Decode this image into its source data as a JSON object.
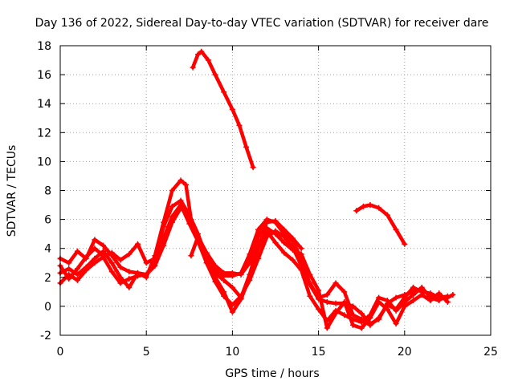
{
  "chart_data": {
    "type": "scatter",
    "title": "Day 136 of 2022, Sidereal Day-to-day VTEC variation (SDTVAR) for receiver dare",
    "xlabel": "GPS time / hours",
    "ylabel": "SDTVAR / TECUs",
    "xlim": [
      0,
      25
    ],
    "ylim": [
      -2,
      18
    ],
    "xticks": [
      0,
      5,
      10,
      15,
      20,
      25
    ],
    "yticks": [
      -2,
      0,
      2,
      4,
      6,
      8,
      10,
      12,
      14,
      16,
      18
    ],
    "grid": true,
    "marker": "+",
    "color": "#ff0000",
    "series": [
      {
        "name": "track-1",
        "points": [
          [
            0,
            3.3
          ],
          [
            0.5,
            3.0
          ],
          [
            1,
            3.8
          ],
          [
            1.5,
            3.3
          ],
          [
            2,
            4.6
          ],
          [
            2.5,
            4.2
          ],
          [
            3,
            3.5
          ],
          [
            3.5,
            2.7
          ],
          [
            4,
            2.4
          ],
          [
            4.5,
            2.3
          ],
          [
            5,
            2.0
          ],
          [
            5.5,
            3.5
          ],
          [
            6,
            5.8
          ],
          [
            6.5,
            8.0
          ],
          [
            7,
            8.7
          ],
          [
            7.3,
            8.4
          ],
          [
            7.6,
            6.0
          ],
          [
            8,
            4.7
          ],
          [
            8.5,
            3.6
          ],
          [
            9,
            2.5
          ],
          [
            9.5,
            2.1
          ],
          [
            10,
            2.1
          ],
          [
            10.5,
            2.3
          ],
          [
            11,
            3.6
          ],
          [
            11.5,
            5.3
          ],
          [
            12,
            6.0
          ],
          [
            12.5,
            5.8
          ],
          [
            13,
            5.0
          ],
          [
            13.5,
            4.5
          ],
          [
            14,
            3.3
          ],
          [
            14.5,
            1.5
          ],
          [
            15,
            0.5
          ],
          [
            15.5,
            0.3
          ],
          [
            16,
            0.2
          ],
          [
            16.5,
            0.2
          ],
          [
            17,
            0.0
          ],
          [
            17.5,
            -0.5
          ],
          [
            18,
            -1.2
          ],
          [
            18.5,
            -0.9
          ],
          [
            19,
            0.2
          ],
          [
            19.5,
            0.6
          ],
          [
            20,
            0.8
          ],
          [
            20.5,
            1.0
          ],
          [
            21,
            1.2
          ],
          [
            21.5,
            0.7
          ],
          [
            22,
            0.5
          ],
          [
            22.5,
            0.6
          ],
          [
            22.8,
            0.8
          ]
        ]
      },
      {
        "name": "track-2",
        "points": [
          [
            0,
            2.3
          ],
          [
            0.5,
            2.6
          ],
          [
            1,
            2.2
          ],
          [
            1.5,
            2.7
          ],
          [
            2,
            3.3
          ],
          [
            2.5,
            3.8
          ],
          [
            3,
            3.0
          ],
          [
            3.5,
            2.0
          ],
          [
            4,
            1.3
          ],
          [
            4.5,
            2.3
          ],
          [
            5,
            2.2
          ],
          [
            5.5,
            3.0
          ],
          [
            6,
            4.7
          ],
          [
            6.5,
            6.2
          ],
          [
            7,
            7.0
          ],
          [
            7.5,
            5.7
          ],
          [
            8,
            4.5
          ],
          [
            8.5,
            3.0
          ],
          [
            9,
            1.7
          ],
          [
            9.5,
            0.7
          ],
          [
            10,
            0.1
          ],
          [
            10.5,
            0.7
          ],
          [
            11,
            1.8
          ],
          [
            11.5,
            3.3
          ],
          [
            12,
            4.8
          ],
          [
            12.5,
            5.2
          ],
          [
            13,
            4.8
          ],
          [
            13.5,
            4.1
          ],
          [
            14,
            2.8
          ],
          [
            14.5,
            1.6
          ],
          [
            15,
            0.6
          ],
          [
            15.5,
            0.8
          ],
          [
            16,
            1.6
          ],
          [
            16.5,
            1.0
          ],
          [
            17,
            -0.6
          ],
          [
            17.5,
            -0.9
          ],
          [
            18,
            -1.3
          ],
          [
            18.5,
            -0.8
          ],
          [
            19,
            0.1
          ],
          [
            19.5,
            -0.2
          ],
          [
            20,
            0.6
          ],
          [
            20.5,
            1.3
          ],
          [
            21,
            1.0
          ],
          [
            21.5,
            0.9
          ],
          [
            22,
            0.6
          ],
          [
            22.5,
            0.7
          ]
        ]
      },
      {
        "name": "track-3",
        "points": [
          [
            0,
            1.6
          ],
          [
            0.5,
            2.2
          ],
          [
            1,
            1.8
          ],
          [
            1.5,
            2.5
          ],
          [
            2,
            3.0
          ],
          [
            2.5,
            3.4
          ],
          [
            3,
            2.4
          ],
          [
            3.5,
            1.6
          ],
          [
            4,
            1.9
          ],
          [
            4.5,
            2.1
          ],
          [
            5,
            2.2
          ],
          [
            5.5,
            2.8
          ],
          [
            6,
            4.2
          ],
          [
            6.5,
            5.8
          ],
          [
            7,
            6.8
          ],
          [
            7.5,
            6.2
          ],
          [
            8,
            4.8
          ],
          [
            8.5,
            3.0
          ],
          [
            9,
            2.0
          ],
          [
            9.5,
            1.0
          ],
          [
            10,
            -0.4
          ],
          [
            10.5,
            0.5
          ],
          [
            11,
            2.0
          ],
          [
            11.5,
            4.0
          ],
          [
            12,
            5.2
          ],
          [
            12.5,
            4.4
          ],
          [
            13,
            3.7
          ],
          [
            13.5,
            3.2
          ],
          [
            14,
            2.5
          ],
          [
            14.5,
            0.7
          ],
          [
            15,
            -0.2
          ],
          [
            15.5,
            -1.0
          ],
          [
            16,
            -0.3
          ],
          [
            16.5,
            -0.6
          ],
          [
            17,
            -0.9
          ],
          [
            17.5,
            -1.1
          ],
          [
            18,
            -0.6
          ],
          [
            18.5,
            0.6
          ],
          [
            19,
            0.4
          ],
          [
            19.5,
            -0.3
          ],
          [
            20,
            0.3
          ],
          [
            20.5,
            0.8
          ],
          [
            21,
            1.3
          ],
          [
            21.5,
            0.6
          ],
          [
            22,
            0.4
          ]
        ]
      },
      {
        "name": "track-4",
        "points": [
          [
            0,
            2.8
          ],
          [
            0.5,
            1.9
          ],
          [
            1,
            2.6
          ],
          [
            1.5,
            3.4
          ],
          [
            2,
            4.0
          ],
          [
            2.5,
            3.5
          ],
          [
            3,
            3.7
          ],
          [
            3.5,
            3.2
          ],
          [
            4,
            3.6
          ],
          [
            4.5,
            4.3
          ],
          [
            5,
            3.0
          ],
          [
            5.5,
            3.3
          ],
          [
            6,
            5.5
          ],
          [
            6.5,
            6.9
          ],
          [
            7,
            7.3
          ],
          [
            7.5,
            6.3
          ],
          [
            8,
            5.0
          ],
          [
            8.5,
            3.4
          ],
          [
            9,
            2.3
          ],
          [
            9.5,
            1.8
          ],
          [
            10,
            1.3
          ],
          [
            10.5,
            0.6
          ],
          [
            11,
            2.2
          ],
          [
            11.5,
            4.2
          ],
          [
            12,
            5.4
          ],
          [
            12.5,
            5.0
          ],
          [
            13,
            4.4
          ],
          [
            13.5,
            3.9
          ],
          [
            14,
            3.6
          ],
          [
            14.5,
            2.2
          ],
          [
            15,
            1.1
          ],
          [
            15.5,
            -1.5
          ],
          [
            16,
            -0.5
          ],
          [
            16.5,
            0.3
          ],
          [
            17,
            -1.3
          ],
          [
            17.5,
            -1.5
          ],
          [
            18,
            -0.8
          ],
          [
            18.5,
            0.3
          ],
          [
            19,
            -0.2
          ],
          [
            19.5,
            -1.2
          ],
          [
            20,
            0.0
          ],
          [
            20.5,
            0.4
          ],
          [
            21,
            0.8
          ],
          [
            21.5,
            0.4
          ],
          [
            22,
            0.9
          ],
          [
            22.5,
            0.3
          ]
        ]
      },
      {
        "name": "track-5",
        "points": [
          [
            7.6,
            3.5
          ],
          [
            8,
            4.8
          ],
          [
            8.5,
            3.7
          ],
          [
            9,
            2.8
          ],
          [
            9.5,
            2.3
          ],
          [
            10,
            2.3
          ],
          [
            10.5,
            2.2
          ],
          [
            11,
            3.0
          ],
          [
            11.5,
            4.8
          ],
          [
            12,
            5.8
          ],
          [
            12.5,
            5.9
          ],
          [
            13,
            5.3
          ],
          [
            13.5,
            4.7
          ],
          [
            14,
            4.0
          ]
        ]
      },
      {
        "name": "track-upper-1",
        "points": [
          [
            7.7,
            16.5
          ],
          [
            8.0,
            17.4
          ],
          [
            8.2,
            17.6
          ],
          [
            8.6,
            17.0
          ],
          [
            9.0,
            16.0
          ],
          [
            9.5,
            14.8
          ],
          [
            10.0,
            13.6
          ],
          [
            10.4,
            12.5
          ],
          [
            10.8,
            11.0
          ],
          [
            11.2,
            9.6
          ]
        ]
      },
      {
        "name": "track-upper-2",
        "points": [
          [
            17.2,
            6.6
          ],
          [
            17.6,
            6.9
          ],
          [
            18,
            7.0
          ],
          [
            18.5,
            6.8
          ],
          [
            19,
            6.3
          ],
          [
            19.5,
            5.3
          ],
          [
            20,
            4.3
          ]
        ]
      }
    ]
  }
}
